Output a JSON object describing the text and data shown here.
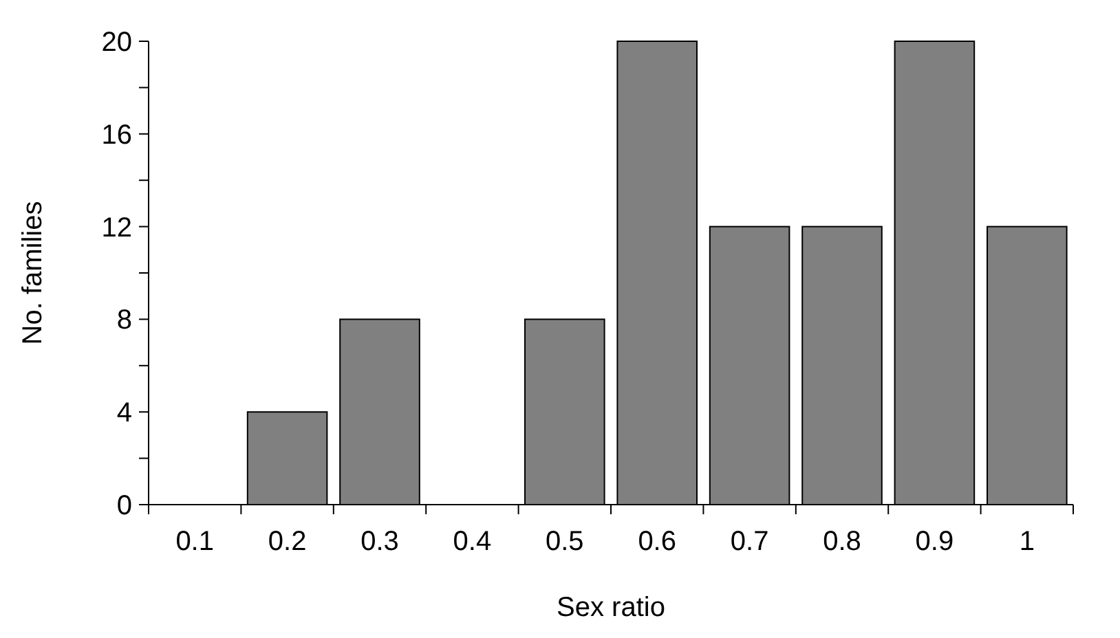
{
  "chart_data": {
    "type": "bar",
    "xlabel": "Sex ratio",
    "ylabel": "No. families",
    "categories": [
      "0.1",
      "0.2",
      "0.3",
      "0.4",
      "0.5",
      "0.6",
      "0.7",
      "0.8",
      "0.9",
      "1"
    ],
    "values": [
      0,
      4,
      8,
      0,
      8,
      20,
      12,
      12,
      20,
      12
    ],
    "color": "#808080",
    "ylim": [
      0,
      20
    ],
    "yticks": [
      0,
      {
        "value": 2,
        "label": null
      },
      4,
      {
        "value": 6,
        "label": null
      },
      8,
      {
        "value": 10,
        "label": null
      },
      12,
      {
        "value": 14,
        "label": null
      },
      16,
      {
        "value": 18,
        "label": null
      },
      20
    ],
    "grid": false
  }
}
